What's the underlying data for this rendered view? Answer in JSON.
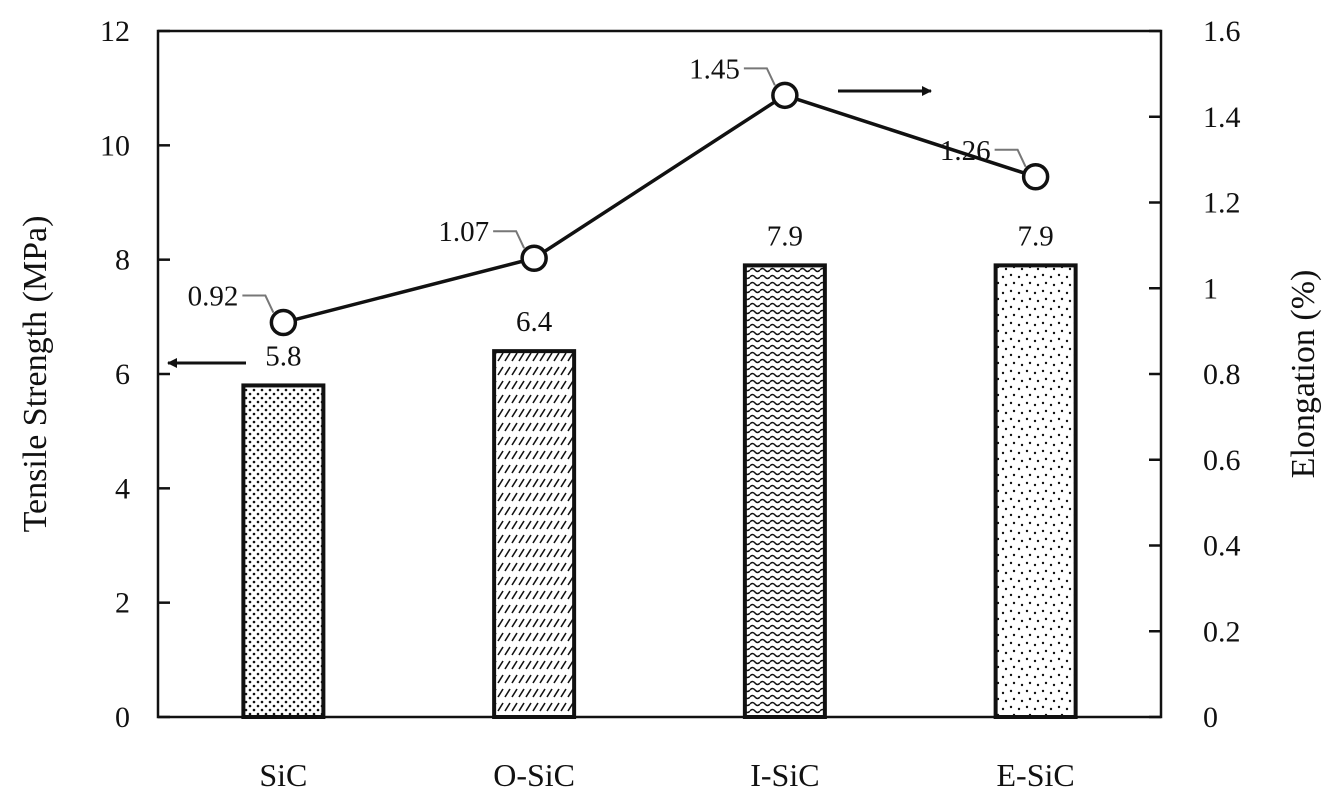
{
  "chart_data": {
    "type": "bar",
    "categories": [
      "SiC",
      "O-SiC",
      "I-SiC",
      "E-SiC"
    ],
    "series": [
      {
        "name": "Tensile Strength",
        "axis": "left",
        "kind": "bar",
        "values": [
          5.8,
          6.4,
          7.9,
          7.9
        ],
        "labels": [
          "5.8",
          "6.4",
          "7.9",
          "7.9"
        ],
        "patterns": [
          "dots",
          "diagonal-dashes",
          "waves",
          "scattered-dots"
        ]
      },
      {
        "name": "Elongation",
        "axis": "right",
        "kind": "line",
        "marker": "open-circle",
        "values": [
          0.92,
          1.07,
          1.45,
          1.26
        ],
        "labels": [
          "0.92",
          "1.07",
          "1.45",
          "1.26"
        ]
      }
    ],
    "ylabel": "Tensile Strength (MPa)",
    "ylim": [
      0,
      12
    ],
    "yticks": [
      "0",
      "2",
      "4",
      "6",
      "8",
      "10",
      "12"
    ],
    "y2label": "Elongation (%)",
    "y2lim": [
      0,
      1.6
    ],
    "y2ticks": [
      "0",
      "0.2",
      "0.4",
      "0.6",
      "0.8",
      "1",
      "1.2",
      "1.4",
      "1.6"
    ],
    "grid": false,
    "legend": "none",
    "annotations": [
      {
        "type": "arrow",
        "direction": "left",
        "meaning": "bars read on left axis"
      },
      {
        "type": "arrow",
        "direction": "right",
        "meaning": "line read on right axis"
      }
    ],
    "colors": {
      "ink": "#111111",
      "background": "#ffffff"
    }
  }
}
